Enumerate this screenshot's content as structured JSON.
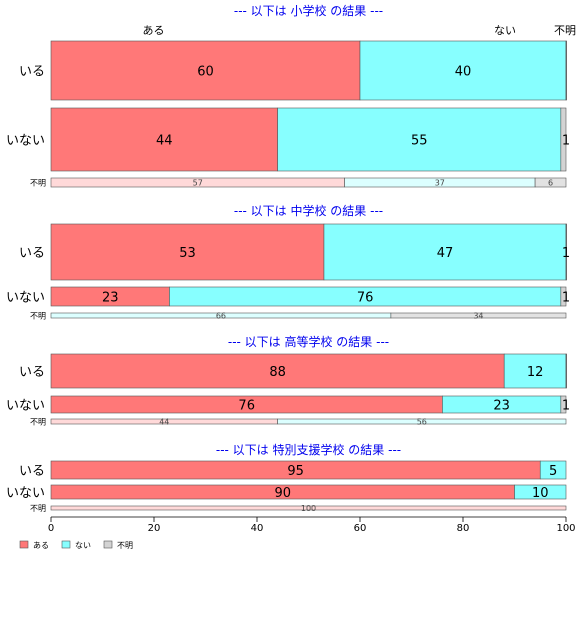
{
  "chart_data": {
    "type": "bar",
    "orientation": "horizontal-stacked-100",
    "column_headers": [
      "ある",
      "ない",
      "不明"
    ],
    "legend": {
      "placement": "bottom-left",
      "items": [
        {
          "label": "ある",
          "color": "#ff7878"
        },
        {
          "label": "ない",
          "color": "#87ffff"
        },
        {
          "label": "不明",
          "color": "#d3d3d3"
        }
      ]
    },
    "faded_colors": [
      "#ffd9d9",
      "#dcffff",
      "#e2e2e2"
    ],
    "xlim": [
      0,
      100
    ],
    "xticks": [
      "0",
      "20",
      "40",
      "60",
      "80",
      "100"
    ],
    "groups": [
      {
        "title": "--- 以下は 小学校 の結果 ---",
        "rows": [
          {
            "label": "いる",
            "values": [
              60,
              40,
              0.5
            ],
            "value_labels": [
              "60",
              "40",
              ""
            ]
          },
          {
            "label": "いない",
            "values": [
              44,
              55,
              1
            ],
            "value_labels": [
              "44",
              "55",
              "1"
            ]
          },
          {
            "label": "不明",
            "values": [
              57,
              37,
              6
            ],
            "value_labels": [
              "57",
              "37",
              "6"
            ],
            "faded": true
          }
        ]
      },
      {
        "title": "--- 以下は 中学校 の結果 ---",
        "rows": [
          {
            "label": "いる",
            "values": [
              53,
              47,
              0.5
            ],
            "value_labels": [
              "53",
              "47",
              "1"
            ]
          },
          {
            "label": "いない",
            "values": [
              23,
              76,
              1
            ],
            "value_labels": [
              "23",
              "76",
              "1"
            ]
          },
          {
            "label": "不明",
            "values": [
              0,
              66,
              34
            ],
            "value_labels": [
              "",
              "66",
              "34"
            ],
            "faded": true
          }
        ]
      },
      {
        "title": "--- 以下は 高等学校 の結果 ---",
        "rows": [
          {
            "label": "いる",
            "values": [
              88,
              12,
              0.3
            ],
            "value_labels": [
              "88",
              "12",
              ""
            ]
          },
          {
            "label": "いない",
            "values": [
              76,
              23,
              1
            ],
            "value_labels": [
              "76",
              "23",
              "1"
            ]
          },
          {
            "label": "不明",
            "values": [
              44,
              56,
              0
            ],
            "value_labels": [
              "44",
              "56",
              ""
            ],
            "faded": true
          }
        ]
      },
      {
        "title": "--- 以下は 特別支援学校 の結果 ---",
        "rows": [
          {
            "label": "いる",
            "values": [
              95,
              5,
              0
            ],
            "value_labels": [
              "95",
              "5",
              ""
            ]
          },
          {
            "label": "いない",
            "values": [
              90,
              10,
              0
            ],
            "value_labels": [
              "90",
              "10",
              ""
            ]
          },
          {
            "label": "不明",
            "values": [
              100,
              0,
              0
            ],
            "value_labels": [
              "100",
              "",
              ""
            ],
            "faded": true
          }
        ]
      }
    ]
  }
}
